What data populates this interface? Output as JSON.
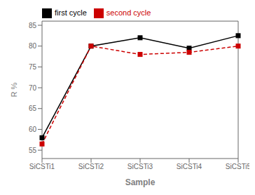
{
  "chart_data": {
    "type": "line",
    "categories": [
      "SiCSTi1",
      "SiCSTi2",
      "SiCSTi3",
      "SiCSTi4",
      "SiCSTi5"
    ],
    "series": [
      {
        "name": "first cycle",
        "color": "#000000",
        "values": [
          58.0,
          80.0,
          82.0,
          79.5,
          82.5
        ],
        "marker": "square",
        "line_style": "solid"
      },
      {
        "name": "second cycle",
        "color": "#cc0000",
        "values": [
          56.5,
          80.0,
          78.0,
          78.5,
          80.0
        ],
        "marker": "square",
        "line_style": "dashed"
      }
    ],
    "xlabel": "Sample",
    "ylabel": "R %",
    "ylim": [
      53,
      86
    ],
    "yticks": [
      55,
      60,
      65,
      70,
      75,
      80,
      85
    ],
    "grid": false,
    "legend": "upper left"
  }
}
